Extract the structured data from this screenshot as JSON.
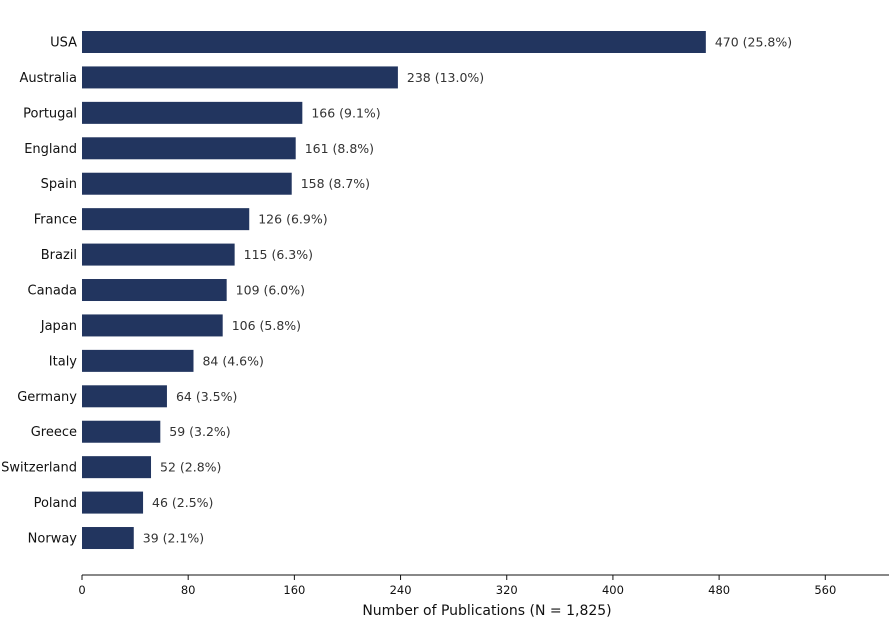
{
  "chart_data": {
    "type": "bar",
    "orientation": "horizontal",
    "categories": [
      "USA",
      "Australia",
      "Portugal",
      "England",
      "Spain",
      "France",
      "Brazil",
      "Canada",
      "Japan",
      "Italy",
      "Germany",
      "Greece",
      "Switzerland",
      "Poland",
      "Norway"
    ],
    "values": [
      470,
      238,
      166,
      161,
      158,
      126,
      115,
      109,
      106,
      84,
      64,
      59,
      52,
      46,
      39
    ],
    "data_labels": [
      "470 (25.8%)",
      "238 (13.0%)",
      "166 (9.1%)",
      "161 (8.8%)",
      "158 (8.7%)",
      "126 (6.9%)",
      "115 (6.3%)",
      "109 (6.0%)",
      "106 (5.8%)",
      "84 (4.6%)",
      "64 (3.5%)",
      "59 (3.2%)",
      "52 (2.8%)",
      "46 (2.5%)",
      "39 (2.1%)"
    ],
    "title": "",
    "xlabel": "Number of Publications (N = 1,825)",
    "ylabel": "",
    "xlim": [
      0,
      608
    ],
    "xticks": [
      0,
      80,
      160,
      240,
      320,
      400,
      480,
      560
    ],
    "grid": false,
    "legend": "none",
    "bar_color": "#22355f"
  }
}
